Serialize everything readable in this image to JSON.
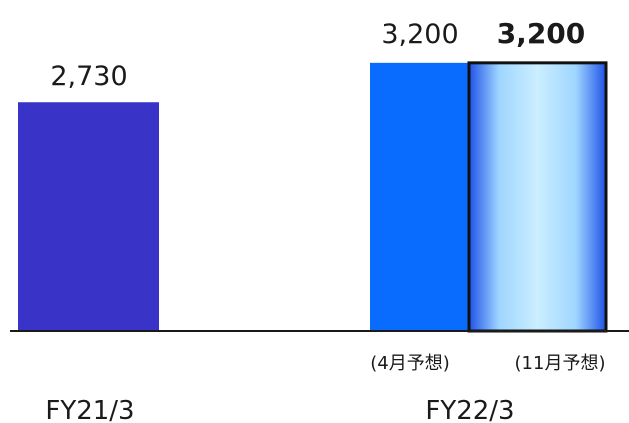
{
  "chart_data": {
    "type": "bar",
    "title": "",
    "xlabel": "",
    "ylabel": "",
    "ylim": [
      0,
      3300
    ],
    "categories": [
      "FY21/3",
      "FY22/3"
    ],
    "bars": [
      {
        "category": "FY21/3",
        "value": 2730,
        "value_label": "2,730",
        "sublabel": "",
        "bold": false,
        "color": "#3a33c8"
      },
      {
        "category": "FY22/3",
        "value": 3200,
        "value_label": "3,200",
        "sublabel": "(4月予想)",
        "bold": false,
        "color": "#0a6bff"
      },
      {
        "category": "FY22/3",
        "value": 3200,
        "value_label": "3,200",
        "sublabel": "(11月予想)",
        "bold": true,
        "color": "#c8ecff"
      }
    ],
    "colors": {
      "fy21": "#3a33c8",
      "fy22_april": "#0a6bff",
      "fy22_nov_center": "#cbeeff",
      "fy22_nov_edge": "#1f53e8",
      "axis": "#1a1a1a"
    }
  }
}
